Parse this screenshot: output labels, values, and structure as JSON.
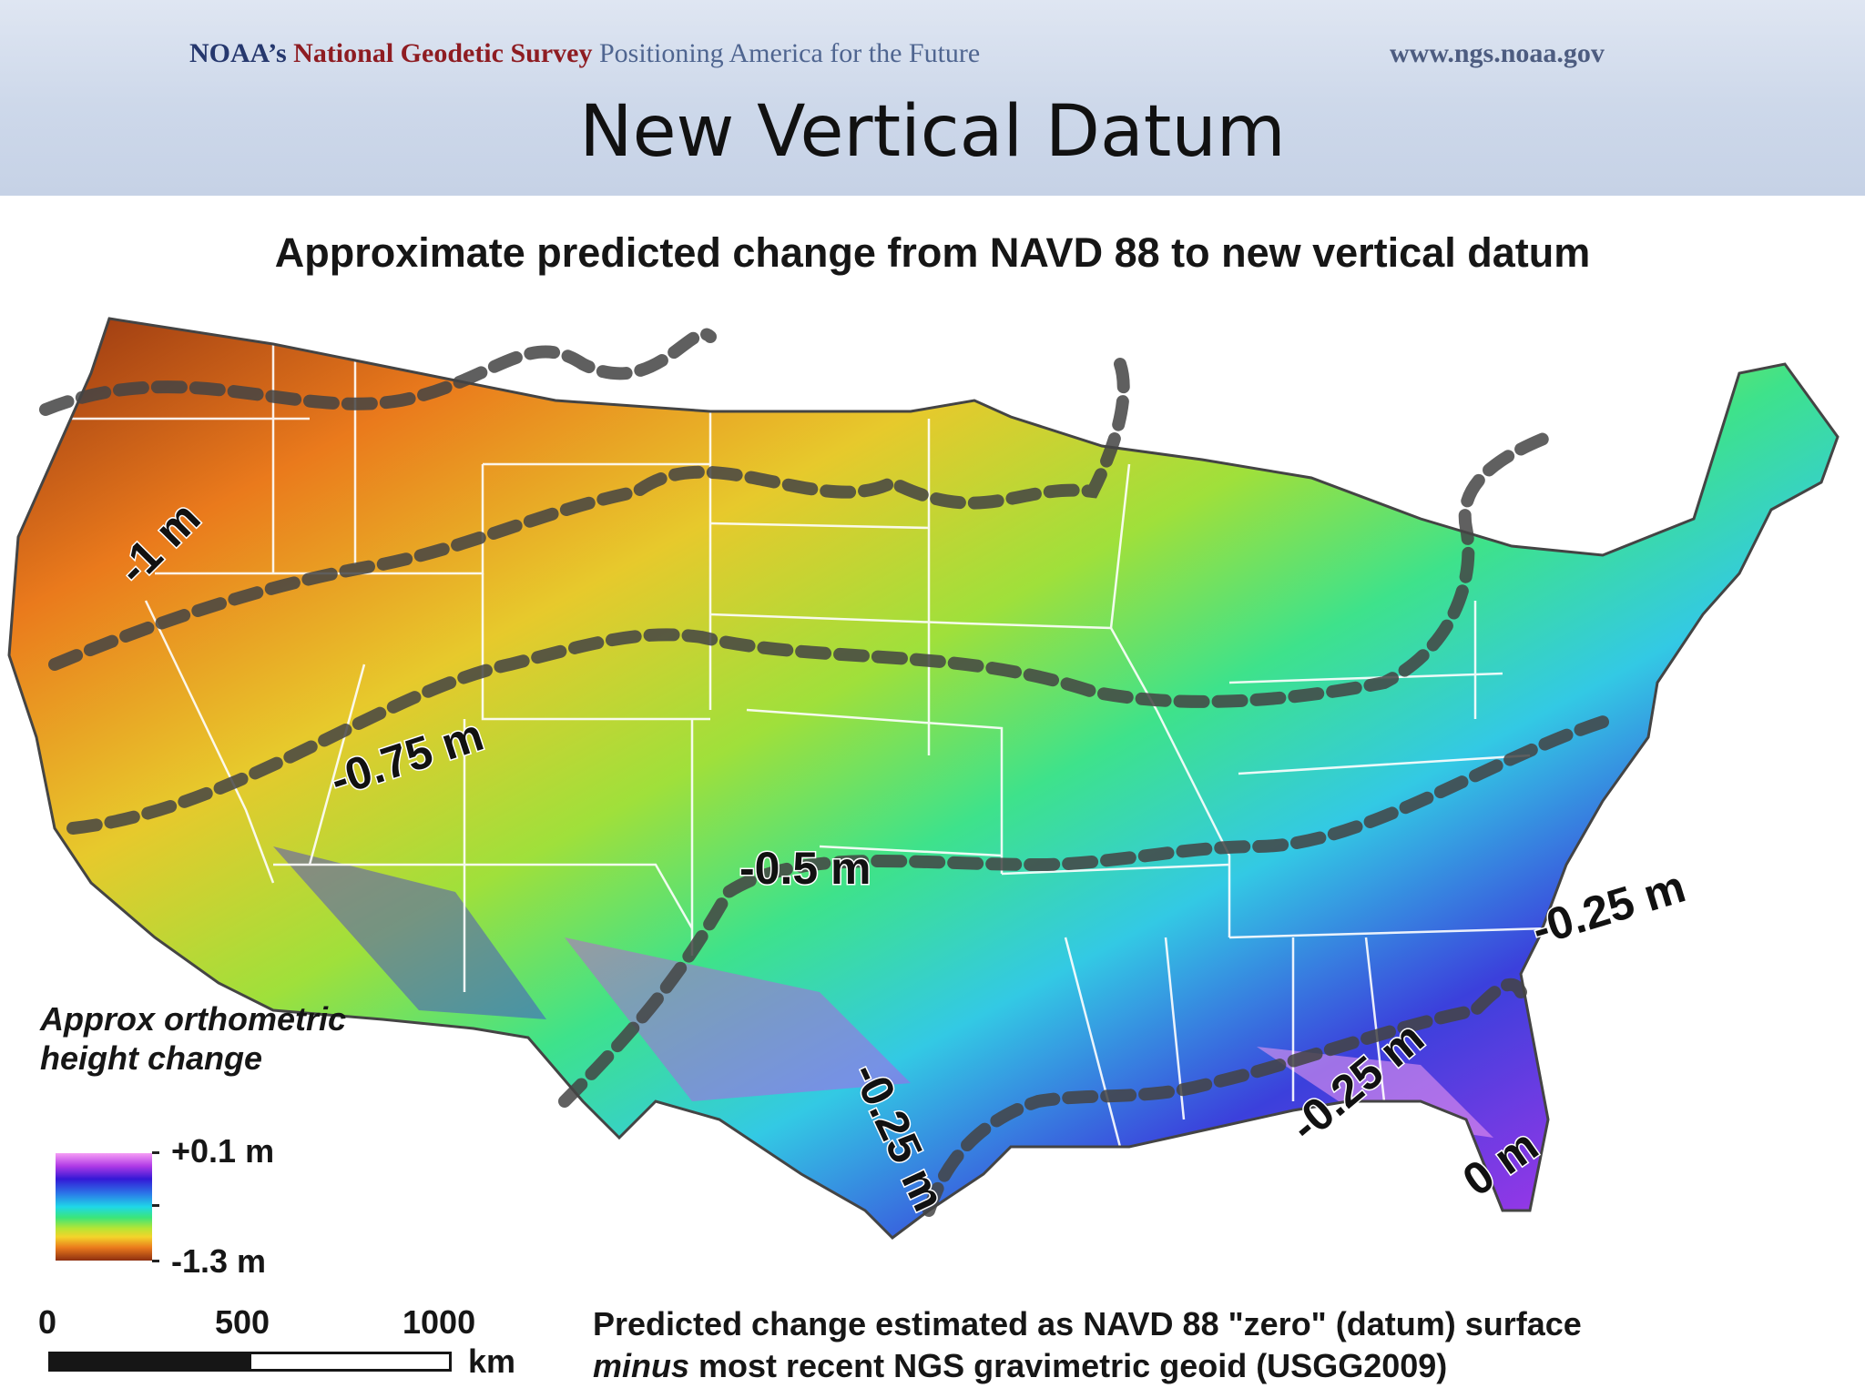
{
  "header": {
    "org_part1": "NOAA’s ",
    "org_part2": "National Geodetic Survey",
    "tagline": " Positioning America for the Future",
    "url": "www.ngs.noaa.gov"
  },
  "slide_title": "New Vertical Datum",
  "map": {
    "title": "Approximate predicted change from NAVD 88 to new vertical datum",
    "contour_labels": [
      "-1 m",
      "-0.75 m",
      "-0.5 m",
      "-0.25 m",
      "-0.25 m",
      "-0.25 m",
      "0 m"
    ],
    "colors": {
      "high": "#f69ef5",
      "mid_high": "#3418d6",
      "mid": "#1fd8e8",
      "mid_low": "#b6e534",
      "low": "#8d2f10"
    }
  },
  "legend": {
    "title": "Approx orthometric height change",
    "max": "+0.1 m",
    "min": "-1.3 m"
  },
  "scale": {
    "ticks": [
      "0",
      "500",
      "1000"
    ],
    "unit": "km"
  },
  "footnote": {
    "line1": "Predicted change estimated as NAVD 88 \"zero\" (datum) surface",
    "line2_italic": "minus",
    "line2_rest": " most recent NGS gravimetric geoid (USGG2009)"
  }
}
